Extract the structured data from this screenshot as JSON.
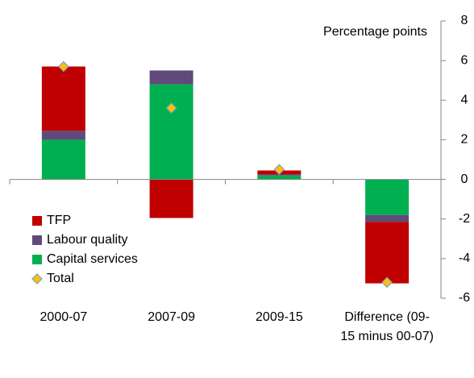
{
  "chart_data": {
    "type": "stacked-bar",
    "y_label": "Percentage points",
    "categories": [
      "2000-07",
      "2007-09",
      "2009-15",
      "Difference (09-15 minus 00-07)"
    ],
    "series": [
      {
        "name": "TFP",
        "color": "#c00000",
        "values": [
          3.25,
          -1.95,
          0.2,
          -3.1
        ]
      },
      {
        "name": "Labour quality",
        "color": "#604a7b",
        "values": [
          0.45,
          0.7,
          0.05,
          -0.35
        ]
      },
      {
        "name": "Capital services",
        "color": "#00b050",
        "values": [
          2.0,
          4.8,
          0.2,
          -1.8
        ]
      }
    ],
    "total": {
      "name": "Total",
      "color": "#ffc000",
      "values": [
        5.7,
        3.6,
        0.5,
        -5.2
      ]
    },
    "ylim": [
      -6,
      8
    ],
    "yticks": [
      -6,
      -4,
      -2,
      0,
      2,
      4,
      6,
      8
    ]
  }
}
